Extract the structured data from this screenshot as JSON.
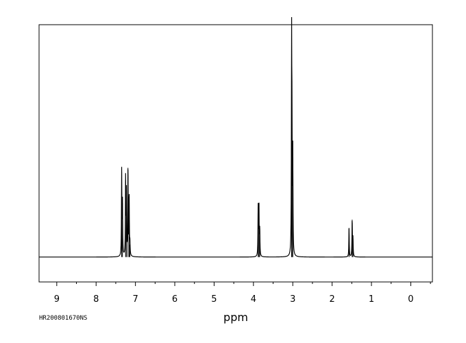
{
  "chart_data": {
    "type": "line",
    "title": "",
    "xlabel": "ppm",
    "ylabel": "",
    "xlim": [
      9.45,
      -0.55
    ],
    "ylim": [
      -0.12,
      1.12
    ],
    "x_reversed": true,
    "grid": false,
    "legend": "none",
    "xticks": [
      9,
      8,
      7,
      6,
      5,
      4,
      3,
      2,
      1,
      0
    ],
    "xtick_labels": [
      "9",
      "8",
      "7",
      "6",
      "5",
      "4",
      "3",
      "2",
      "1",
      "0"
    ],
    "peaks": [
      {
        "ppm": 7.35,
        "height": 0.41
      },
      {
        "ppm": 7.33,
        "height": 0.26
      },
      {
        "ppm": 7.25,
        "height": 0.37
      },
      {
        "ppm": 7.23,
        "height": 0.31
      },
      {
        "ppm": 7.19,
        "height": 0.43
      },
      {
        "ppm": 7.16,
        "height": 0.3
      },
      {
        "ppm": 7.14,
        "height": 0.06
      },
      {
        "ppm": 3.88,
        "height": 0.24
      },
      {
        "ppm": 3.86,
        "height": 0.25
      },
      {
        "ppm": 3.84,
        "height": 0.13
      },
      {
        "ppm": 3.03,
        "height": 1.0
      },
      {
        "ppm": 3.02,
        "height": 0.52
      },
      {
        "ppm": 3.0,
        "height": 0.48
      },
      {
        "ppm": 1.57,
        "height": 0.14
      },
      {
        "ppm": 1.49,
        "height": 0.18
      },
      {
        "ppm": 1.47,
        "height": 0.09
      }
    ],
    "colors": {
      "line": "#000000",
      "frame": "#000000"
    }
  },
  "footer_id": "HR200801670NS"
}
